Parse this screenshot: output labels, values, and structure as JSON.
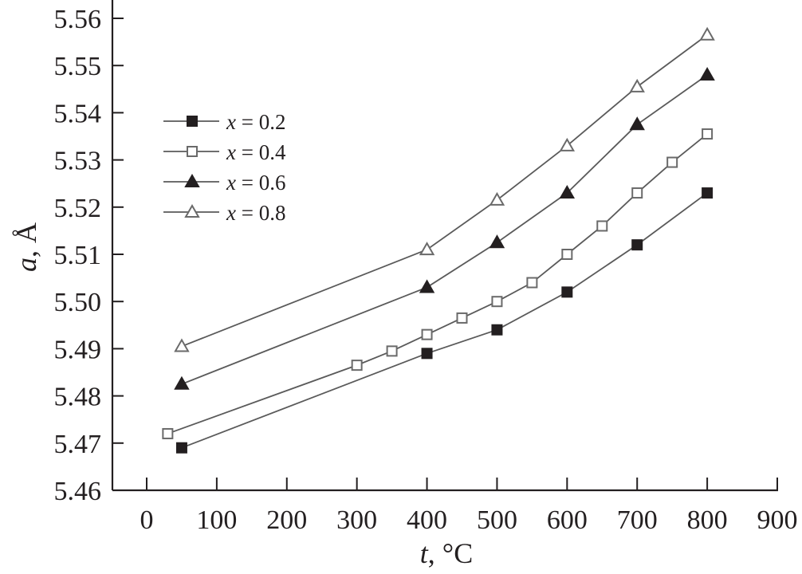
{
  "chart_data": {
    "type": "line",
    "title": "",
    "xlabel_var": "t",
    "xlabel_unit": ", °C",
    "ylabel_var": "a",
    "ylabel_unit": ", Å",
    "xlim": [
      -50,
      900
    ],
    "ylim": [
      5.46,
      5.56
    ],
    "x_ticks": [
      0,
      100,
      200,
      300,
      400,
      500,
      600,
      700,
      800,
      900
    ],
    "x_tick_labels": [
      "0",
      "100",
      "200",
      "300",
      "400",
      "500",
      "600",
      "700",
      "800",
      "900"
    ],
    "y_ticks": [
      5.46,
      5.47,
      5.48,
      5.49,
      5.5,
      5.51,
      5.52,
      5.53,
      5.54,
      5.55,
      5.56
    ],
    "y_tick_labels": [
      "5.46",
      "5.47",
      "5.48",
      "5.49",
      "5.50",
      "5.51",
      "5.52",
      "5.53",
      "5.54",
      "5.55",
      "5.56"
    ],
    "grid": false,
    "legend_position": "upper-left",
    "series": [
      {
        "name": "x = 0.2",
        "legend_var": "x",
        "legend_val": " = 0.2",
        "marker": "square-filled",
        "x": [
          50,
          400,
          500,
          600,
          700,
          800
        ],
        "y": [
          5.469,
          5.489,
          5.494,
          5.502,
          5.512,
          5.523
        ]
      },
      {
        "name": "x = 0.4",
        "legend_var": "x",
        "legend_val": " = 0.4",
        "marker": "square-open",
        "x": [
          30,
          300,
          350,
          400,
          450,
          500,
          550,
          600,
          650,
          700,
          750,
          800
        ],
        "y": [
          5.472,
          5.4865,
          5.4895,
          5.493,
          5.4965,
          5.5,
          5.504,
          5.51,
          5.516,
          5.523,
          5.5295,
          5.5355
        ]
      },
      {
        "name": "x = 0.6",
        "legend_var": "x",
        "legend_val": " = 0.6",
        "marker": "triangle-filled",
        "x": [
          50,
          400,
          500,
          600,
          700,
          800
        ],
        "y": [
          5.4825,
          5.503,
          5.5125,
          5.523,
          5.5375,
          5.548
        ]
      },
      {
        "name": "x = 0.8",
        "legend_var": "x",
        "legend_val": " = 0.8",
        "marker": "triangle-open",
        "x": [
          50,
          400,
          500,
          600,
          700,
          800
        ],
        "y": [
          5.4905,
          5.511,
          5.5215,
          5.533,
          5.5455,
          5.5565
        ]
      }
    ],
    "colors": {
      "line": "#5a5a5a",
      "marker": "#231f20",
      "axis": "#231f20"
    }
  }
}
